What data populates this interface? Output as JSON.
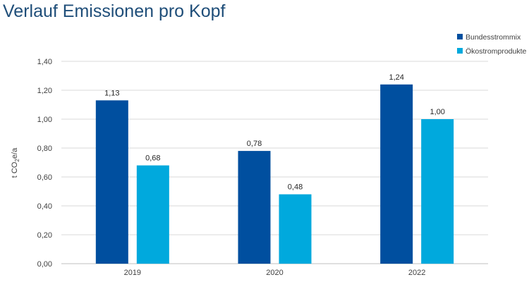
{
  "title": "Verlauf Emissionen pro Kopf",
  "chart_data": {
    "type": "bar",
    "categories": [
      "2019",
      "2020",
      "2022"
    ],
    "series": [
      {
        "name": "Bundesstrommix",
        "color": "#004f9f",
        "values": [
          1.13,
          0.78,
          1.24
        ],
        "labels": [
          "1,13",
          "0,78",
          "1,24"
        ]
      },
      {
        "name": "Ökostromprodukte",
        "color": "#00a9dd",
        "values": [
          0.68,
          0.48,
          1.0
        ],
        "labels": [
          "0,68",
          "0,48",
          "1,00"
        ]
      }
    ],
    "ylabel_prefix": "t CO",
    "ylabel_sub": "2",
    "ylabel_suffix": "e/a",
    "ylim": [
      0,
      1.4
    ],
    "yticks": [
      0,
      0.2,
      0.4,
      0.6,
      0.8,
      1.0,
      1.2,
      1.4
    ],
    "ytick_labels": [
      "0,00",
      "0,20",
      "0,40",
      "0,60",
      "0,80",
      "1,00",
      "1,20",
      "1,40"
    ],
    "grid": true,
    "legend_position": "top-right"
  }
}
